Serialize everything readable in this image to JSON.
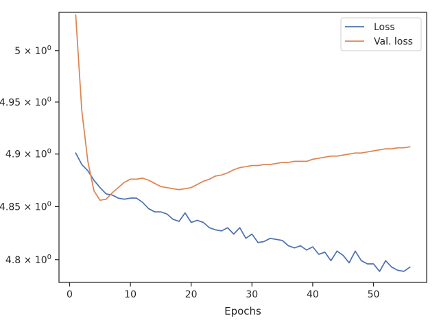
{
  "chart_data": {
    "type": "line",
    "title": "",
    "xlabel": "Epochs",
    "ylabel": "",
    "yscale": "log",
    "xlim": [
      -1.75,
      58.75
    ],
    "ylim": [
      4.7787,
      5.0375
    ],
    "xticks": [
      0,
      10,
      20,
      30,
      40,
      50
    ],
    "xtick_labels": [
      "0",
      "10",
      "20",
      "30",
      "40",
      "50"
    ],
    "yticks": [
      4.8,
      4.85,
      4.9,
      4.95,
      5.0
    ],
    "ytick_labels": [
      {
        "base": "4.8 × 10",
        "exp": "0"
      },
      {
        "base": "4.85 × 10",
        "exp": "0"
      },
      {
        "base": "4.9 × 10",
        "exp": "0"
      },
      {
        "base": "4.95 × 10",
        "exp": "0"
      },
      {
        "base": "5 × 10",
        "exp": "0"
      }
    ],
    "grid": false,
    "legend": "top-right",
    "series": [
      {
        "name": "Loss",
        "color": "#4c72b0",
        "x": [
          1,
          2,
          3,
          4,
          5,
          6,
          7,
          8,
          9,
          10,
          11,
          12,
          13,
          14,
          15,
          16,
          17,
          18,
          19,
          20,
          21,
          22,
          23,
          24,
          25,
          26,
          27,
          28,
          29,
          30,
          31,
          32,
          33,
          34,
          35,
          36,
          37,
          38,
          39,
          40,
          41,
          42,
          43,
          44,
          45,
          46,
          47,
          48,
          49,
          50,
          51,
          52,
          53,
          54,
          55,
          56
        ],
        "values": [
          4.901,
          4.89,
          4.884,
          4.875,
          4.868,
          4.862,
          4.861,
          4.858,
          4.857,
          4.858,
          4.858,
          4.854,
          4.848,
          4.845,
          4.845,
          4.843,
          4.838,
          4.836,
          4.844,
          4.835,
          4.837,
          4.835,
          4.83,
          4.828,
          4.827,
          4.83,
          4.824,
          4.83,
          4.82,
          4.824,
          4.816,
          4.817,
          4.82,
          4.819,
          4.818,
          4.813,
          4.811,
          4.813,
          4.809,
          4.812,
          4.805,
          4.807,
          4.799,
          4.808,
          4.804,
          4.797,
          4.808,
          4.799,
          4.796,
          4.796,
          4.789,
          4.799,
          4.793,
          4.79,
          4.789,
          4.793
        ]
      },
      {
        "name": "Val. loss",
        "color": "#dd8452",
        "x": [
          1,
          2,
          3,
          4,
          5,
          6,
          7,
          8,
          9,
          10,
          11,
          12,
          13,
          14,
          15,
          16,
          17,
          18,
          19,
          20,
          21,
          22,
          23,
          24,
          25,
          26,
          27,
          28,
          29,
          30,
          31,
          32,
          33,
          34,
          35,
          36,
          37,
          38,
          39,
          40,
          41,
          42,
          43,
          44,
          45,
          46,
          47,
          48,
          49,
          50,
          51,
          52,
          53,
          54,
          55,
          56
        ],
        "values": [
          5.035,
          4.942,
          4.893,
          4.865,
          4.856,
          4.857,
          4.863,
          4.868,
          4.873,
          4.876,
          4.876,
          4.877,
          4.875,
          4.872,
          4.869,
          4.868,
          4.867,
          4.866,
          4.867,
          4.868,
          4.871,
          4.874,
          4.876,
          4.879,
          4.88,
          4.882,
          4.885,
          4.887,
          4.888,
          4.889,
          4.889,
          4.89,
          4.89,
          4.891,
          4.892,
          4.892,
          4.893,
          4.893,
          4.893,
          4.895,
          4.896,
          4.897,
          4.898,
          4.898,
          4.899,
          4.9,
          4.901,
          4.901,
          4.902,
          4.903,
          4.904,
          4.905,
          4.905,
          4.906,
          4.906,
          4.907
        ]
      }
    ]
  }
}
